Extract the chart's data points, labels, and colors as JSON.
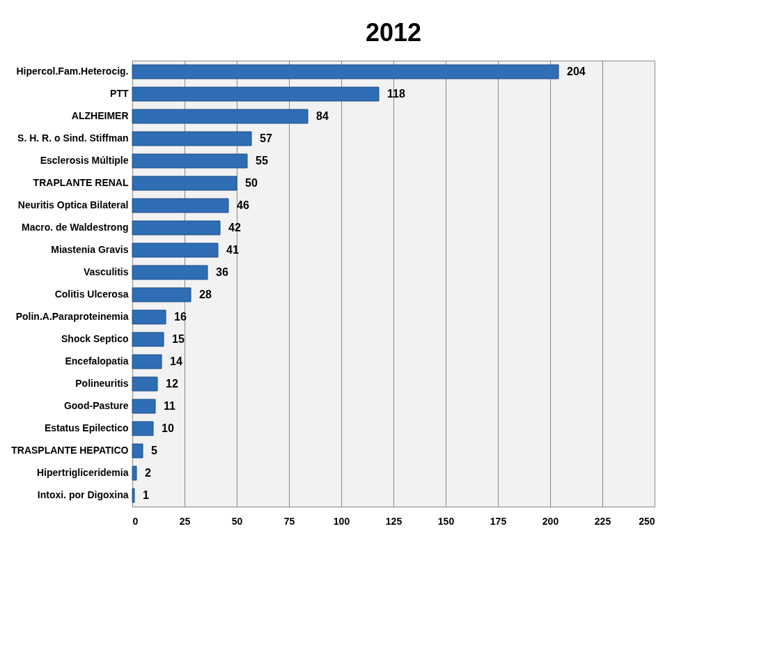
{
  "chart_data": {
    "type": "bar",
    "orientation": "horizontal",
    "title": "2012",
    "categories": [
      "Hipercol.Fam.Heterocig.",
      "PTT",
      "ALZHEIMER",
      "S. H. R. o Sind. Stiffman",
      "Esclerosis Múltiple",
      "TRAPLANTE RENAL",
      "Neuritis Optica Bilateral",
      "Macro. de Waldestrong",
      "Miastenia Gravis",
      "Vasculitis",
      "Colitis Ulcerosa",
      "Polin.A.Paraproteinemia",
      "Shock Septico",
      "Encefalopatia",
      "Polineuritis",
      "Good-Pasture",
      "Estatus Epilectico",
      "TRASPLANTE HEPATICO",
      "Hipertrigliceridemia",
      "Intoxi. por Digoxina"
    ],
    "values": [
      204,
      118,
      84,
      57,
      55,
      50,
      46,
      42,
      41,
      36,
      28,
      16,
      15,
      14,
      12,
      11,
      10,
      5,
      2,
      1
    ],
    "color": "#2f6db5",
    "xlim": [
      0,
      250
    ],
    "xticks": [
      0,
      25,
      50,
      75,
      100,
      125,
      150,
      175,
      200,
      225,
      250
    ],
    "grid": "x",
    "data_labels": true
  }
}
